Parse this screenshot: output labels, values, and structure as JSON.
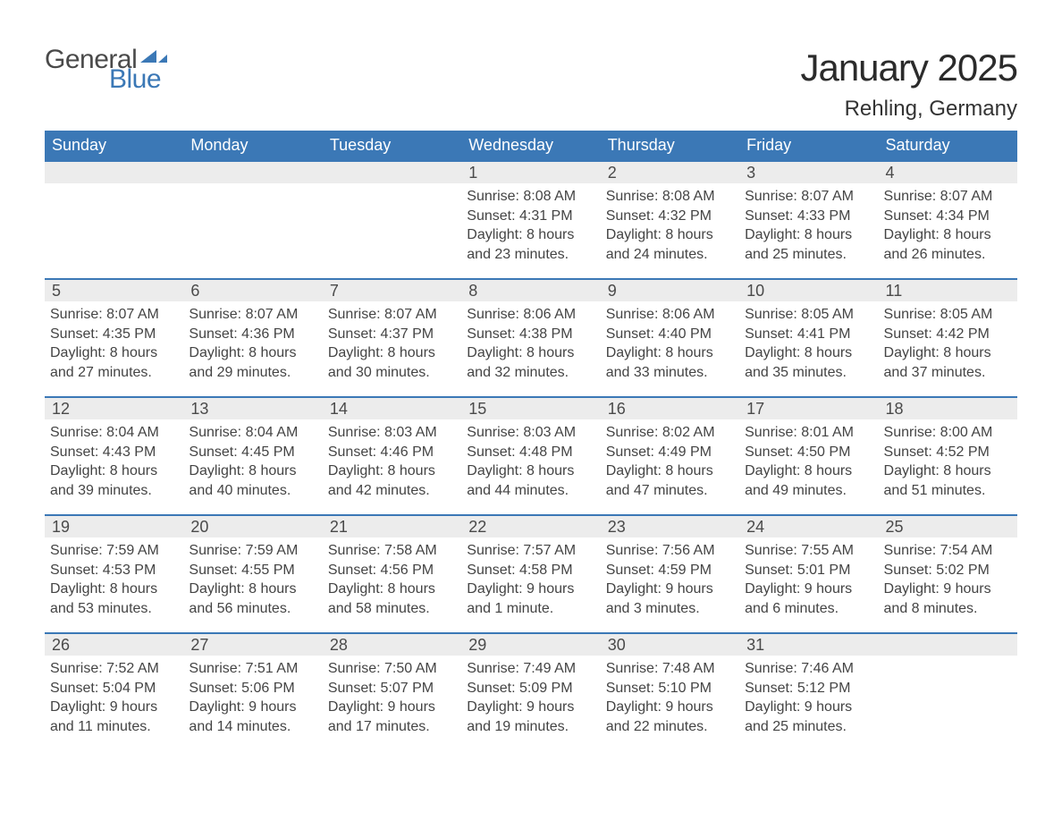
{
  "logo": {
    "word1": "General",
    "word2": "Blue",
    "color_general": "#4a4a4a",
    "color_blue": "#3b78b6"
  },
  "title": "January 2025",
  "subtitle": "Rehling, Germany",
  "colors": {
    "header_bg": "#3b78b6",
    "header_text": "#ffffff",
    "daybar_bg": "#ececec",
    "daybar_text": "#4a4a4a",
    "row_border": "#3b78b6",
    "body_text": "#444444",
    "page_bg": "#ffffff"
  },
  "typography": {
    "title_fontsize": 42,
    "subtitle_fontsize": 24,
    "header_fontsize": 18,
    "daynum_fontsize": 18,
    "body_fontsize": 16
  },
  "calendar": {
    "type": "table",
    "columns": [
      "Sunday",
      "Monday",
      "Tuesday",
      "Wednesday",
      "Thursday",
      "Friday",
      "Saturday"
    ],
    "weeks": [
      [
        null,
        null,
        null,
        {
          "n": "1",
          "sunrise": "8:08 AM",
          "sunset": "4:31 PM",
          "daylight_h": "8",
          "daylight_m": "23"
        },
        {
          "n": "2",
          "sunrise": "8:08 AM",
          "sunset": "4:32 PM",
          "daylight_h": "8",
          "daylight_m": "24"
        },
        {
          "n": "3",
          "sunrise": "8:07 AM",
          "sunset": "4:33 PM",
          "daylight_h": "8",
          "daylight_m": "25"
        },
        {
          "n": "4",
          "sunrise": "8:07 AM",
          "sunset": "4:34 PM",
          "daylight_h": "8",
          "daylight_m": "26"
        }
      ],
      [
        {
          "n": "5",
          "sunrise": "8:07 AM",
          "sunset": "4:35 PM",
          "daylight_h": "8",
          "daylight_m": "27"
        },
        {
          "n": "6",
          "sunrise": "8:07 AM",
          "sunset": "4:36 PM",
          "daylight_h": "8",
          "daylight_m": "29"
        },
        {
          "n": "7",
          "sunrise": "8:07 AM",
          "sunset": "4:37 PM",
          "daylight_h": "8",
          "daylight_m": "30"
        },
        {
          "n": "8",
          "sunrise": "8:06 AM",
          "sunset": "4:38 PM",
          "daylight_h": "8",
          "daylight_m": "32"
        },
        {
          "n": "9",
          "sunrise": "8:06 AM",
          "sunset": "4:40 PM",
          "daylight_h": "8",
          "daylight_m": "33"
        },
        {
          "n": "10",
          "sunrise": "8:05 AM",
          "sunset": "4:41 PM",
          "daylight_h": "8",
          "daylight_m": "35"
        },
        {
          "n": "11",
          "sunrise": "8:05 AM",
          "sunset": "4:42 PM",
          "daylight_h": "8",
          "daylight_m": "37"
        }
      ],
      [
        {
          "n": "12",
          "sunrise": "8:04 AM",
          "sunset": "4:43 PM",
          "daylight_h": "8",
          "daylight_m": "39"
        },
        {
          "n": "13",
          "sunrise": "8:04 AM",
          "sunset": "4:45 PM",
          "daylight_h": "8",
          "daylight_m": "40"
        },
        {
          "n": "14",
          "sunrise": "8:03 AM",
          "sunset": "4:46 PM",
          "daylight_h": "8",
          "daylight_m": "42"
        },
        {
          "n": "15",
          "sunrise": "8:03 AM",
          "sunset": "4:48 PM",
          "daylight_h": "8",
          "daylight_m": "44"
        },
        {
          "n": "16",
          "sunrise": "8:02 AM",
          "sunset": "4:49 PM",
          "daylight_h": "8",
          "daylight_m": "47"
        },
        {
          "n": "17",
          "sunrise": "8:01 AM",
          "sunset": "4:50 PM",
          "daylight_h": "8",
          "daylight_m": "49"
        },
        {
          "n": "18",
          "sunrise": "8:00 AM",
          "sunset": "4:52 PM",
          "daylight_h": "8",
          "daylight_m": "51"
        }
      ],
      [
        {
          "n": "19",
          "sunrise": "7:59 AM",
          "sunset": "4:53 PM",
          "daylight_h": "8",
          "daylight_m": "53"
        },
        {
          "n": "20",
          "sunrise": "7:59 AM",
          "sunset": "4:55 PM",
          "daylight_h": "8",
          "daylight_m": "56"
        },
        {
          "n": "21",
          "sunrise": "7:58 AM",
          "sunset": "4:56 PM",
          "daylight_h": "8",
          "daylight_m": "58"
        },
        {
          "n": "22",
          "sunrise": "7:57 AM",
          "sunset": "4:58 PM",
          "daylight_h": "9",
          "daylight_m": "1"
        },
        {
          "n": "23",
          "sunrise": "7:56 AM",
          "sunset": "4:59 PM",
          "daylight_h": "9",
          "daylight_m": "3"
        },
        {
          "n": "24",
          "sunrise": "7:55 AM",
          "sunset": "5:01 PM",
          "daylight_h": "9",
          "daylight_m": "6"
        },
        {
          "n": "25",
          "sunrise": "7:54 AM",
          "sunset": "5:02 PM",
          "daylight_h": "9",
          "daylight_m": "8"
        }
      ],
      [
        {
          "n": "26",
          "sunrise": "7:52 AM",
          "sunset": "5:04 PM",
          "daylight_h": "9",
          "daylight_m": "11"
        },
        {
          "n": "27",
          "sunrise": "7:51 AM",
          "sunset": "5:06 PM",
          "daylight_h": "9",
          "daylight_m": "14"
        },
        {
          "n": "28",
          "sunrise": "7:50 AM",
          "sunset": "5:07 PM",
          "daylight_h": "9",
          "daylight_m": "17"
        },
        {
          "n": "29",
          "sunrise": "7:49 AM",
          "sunset": "5:09 PM",
          "daylight_h": "9",
          "daylight_m": "19"
        },
        {
          "n": "30",
          "sunrise": "7:48 AM",
          "sunset": "5:10 PM",
          "daylight_h": "9",
          "daylight_m": "22"
        },
        {
          "n": "31",
          "sunrise": "7:46 AM",
          "sunset": "5:12 PM",
          "daylight_h": "9",
          "daylight_m": "25"
        },
        null
      ]
    ],
    "labels": {
      "sunrise_prefix": "Sunrise: ",
      "sunset_prefix": "Sunset: ",
      "daylight_prefix": "Daylight: ",
      "hours_word": " hours",
      "and_word": "and ",
      "minutes_word": " minutes.",
      "minute_word": " minute."
    }
  }
}
